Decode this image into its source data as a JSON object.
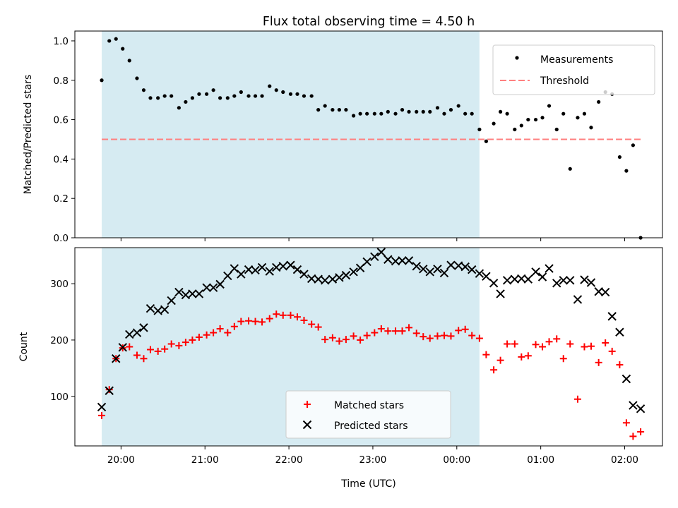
{
  "chart_data": [
    {
      "type": "scatter",
      "title": "Flux total observing time = 4.50 h",
      "xlabel": "",
      "ylabel": "Matched/Predicted stars",
      "ylim": [
        0,
        1.05
      ],
      "yticks": [
        "0.0",
        "0.2",
        "0.4",
        "0.6",
        "0.8",
        "1.0"
      ],
      "xlim_hours": [
        19.45,
        26.45
      ],
      "shaded_span_hours": [
        19.77,
        24.27
      ],
      "legend_position": "top-right",
      "threshold": {
        "name": "Threshold",
        "value": 0.5,
        "from_hours": 19.77,
        "to_hours": 26.22,
        "color": "#ff7f7f"
      },
      "series": [
        {
          "name": "Measurements",
          "color": "#000000",
          "x_hours": [
            19.77,
            19.86,
            19.94,
            20.02,
            20.1,
            20.19,
            20.27,
            20.35,
            20.44,
            20.52,
            20.6,
            20.69,
            20.77,
            20.85,
            20.93,
            21.02,
            21.1,
            21.18,
            21.27,
            21.35,
            21.43,
            21.52,
            21.6,
            21.68,
            21.77,
            21.85,
            21.93,
            22.02,
            22.1,
            22.18,
            22.27,
            22.35,
            22.43,
            22.52,
            22.6,
            22.68,
            22.77,
            22.85,
            22.93,
            23.02,
            23.1,
            23.18,
            23.27,
            23.35,
            23.43,
            23.52,
            23.6,
            23.68,
            23.77,
            23.85,
            23.93,
            24.02,
            24.1,
            24.18,
            24.27,
            24.35,
            24.44,
            24.52,
            24.6,
            24.69,
            24.77,
            24.85,
            24.94,
            25.02,
            25.1,
            25.19,
            25.27,
            25.35,
            25.44,
            25.52,
            25.6,
            25.69,
            25.77,
            25.85,
            25.94,
            26.02,
            26.1,
            26.19
          ],
          "values": [
            0.8,
            1.0,
            1.01,
            0.96,
            0.9,
            0.81,
            0.75,
            0.71,
            0.71,
            0.72,
            0.72,
            0.66,
            0.69,
            0.71,
            0.73,
            0.73,
            0.75,
            0.71,
            0.71,
            0.72,
            0.74,
            0.72,
            0.72,
            0.72,
            0.77,
            0.75,
            0.74,
            0.73,
            0.73,
            0.72,
            0.72,
            0.65,
            0.67,
            0.65,
            0.65,
            0.65,
            0.62,
            0.63,
            0.63,
            0.63,
            0.63,
            0.64,
            0.63,
            0.65,
            0.64,
            0.64,
            0.64,
            0.64,
            0.66,
            0.63,
            0.65,
            0.67,
            0.63,
            0.63,
            0.55,
            0.49,
            0.58,
            0.64,
            0.63,
            0.55,
            0.57,
            0.6,
            0.6,
            0.61,
            0.67,
            0.55,
            0.63,
            0.35,
            0.61,
            0.63,
            0.56,
            0.69,
            0.74,
            0.73,
            0.41,
            0.34,
            0.47,
            0.0
          ]
        }
      ]
    },
    {
      "type": "scatter",
      "title": "",
      "xlabel": "Time (UTC)",
      "ylabel": "Count",
      "ylim": [
        12,
        364
      ],
      "yticks": [
        "100",
        "200",
        "300"
      ],
      "xlim_hours": [
        19.45,
        26.45
      ],
      "xticks": [
        "20:00",
        "21:00",
        "22:00",
        "23:00",
        "00:00",
        "01:00",
        "02:00"
      ],
      "shaded_span_hours": [
        19.77,
        24.27
      ],
      "legend_position": "lower-center",
      "series": [
        {
          "name": "Matched stars",
          "color": "#ff0000",
          "marker": "plus",
          "x_hours": [
            19.77,
            19.86,
            19.94,
            20.02,
            20.1,
            20.19,
            20.27,
            20.35,
            20.44,
            20.52,
            20.6,
            20.69,
            20.77,
            20.85,
            20.93,
            21.02,
            21.1,
            21.18,
            21.27,
            21.35,
            21.43,
            21.52,
            21.6,
            21.68,
            21.77,
            21.85,
            21.93,
            22.02,
            22.1,
            22.18,
            22.27,
            22.35,
            22.43,
            22.52,
            22.6,
            22.68,
            22.77,
            22.85,
            22.93,
            23.02,
            23.1,
            23.18,
            23.27,
            23.35,
            23.43,
            23.52,
            23.6,
            23.68,
            23.77,
            23.85,
            23.93,
            24.02,
            24.1,
            24.18,
            24.27,
            24.35,
            24.44,
            24.52,
            24.6,
            24.69,
            24.77,
            24.85,
            24.94,
            25.02,
            25.1,
            25.19,
            25.27,
            25.35,
            25.44,
            25.52,
            25.6,
            25.69,
            25.77,
            25.85,
            25.94,
            26.02,
            26.1,
            26.19
          ],
          "values": [
            66,
            112,
            167,
            186,
            188,
            173,
            167,
            183,
            180,
            184,
            193,
            190,
            196,
            200,
            205,
            209,
            213,
            220,
            213,
            224,
            233,
            234,
            233,
            232,
            238,
            246,
            244,
            244,
            241,
            235,
            228,
            223,
            201,
            204,
            198,
            201,
            207,
            200,
            208,
            213,
            220,
            216,
            216,
            216,
            222,
            212,
            206,
            203,
            207,
            208,
            207,
            217,
            219,
            208,
            203,
            174,
            147,
            164,
            193,
            193,
            170,
            172,
            192,
            188,
            197,
            202,
            167,
            193,
            95,
            188,
            189,
            160,
            195,
            180,
            156,
            53,
            29,
            37
          ]
        },
        {
          "name": "Predicted stars",
          "color": "#000000",
          "marker": "x",
          "x_hours": [
            19.77,
            19.86,
            19.94,
            20.02,
            20.1,
            20.19,
            20.27,
            20.35,
            20.44,
            20.52,
            20.6,
            20.69,
            20.77,
            20.85,
            20.93,
            21.02,
            21.1,
            21.18,
            21.27,
            21.35,
            21.43,
            21.52,
            21.6,
            21.68,
            21.77,
            21.85,
            21.93,
            22.02,
            22.1,
            22.18,
            22.27,
            22.35,
            22.43,
            22.52,
            22.6,
            22.68,
            22.77,
            22.85,
            22.93,
            23.02,
            23.1,
            23.18,
            23.27,
            23.35,
            23.43,
            23.52,
            23.6,
            23.68,
            23.77,
            23.85,
            23.93,
            24.02,
            24.1,
            24.18,
            24.27,
            24.35,
            24.44,
            24.52,
            24.6,
            24.69,
            24.77,
            24.85,
            24.94,
            25.02,
            25.1,
            25.19,
            25.27,
            25.35,
            25.44,
            25.52,
            25.6,
            25.69,
            25.77,
            25.85,
            25.94,
            26.02,
            26.1,
            26.19
          ],
          "values": [
            81,
            110,
            167,
            187,
            210,
            213,
            222,
            256,
            252,
            254,
            270,
            285,
            280,
            282,
            282,
            293,
            293,
            299,
            314,
            327,
            317,
            325,
            324,
            329,
            322,
            329,
            331,
            333,
            325,
            317,
            309,
            308,
            306,
            308,
            311,
            315,
            321,
            328,
            339,
            348,
            356,
            343,
            340,
            341,
            341,
            331,
            326,
            321,
            326,
            319,
            333,
            332,
            330,
            325,
            318,
            313,
            301,
            282,
            306,
            308,
            309,
            308,
            321,
            312,
            327,
            301,
            306,
            306,
            272,
            307,
            302,
            286,
            285,
            242,
            214,
            131,
            84,
            78
          ]
        }
      ]
    }
  ]
}
